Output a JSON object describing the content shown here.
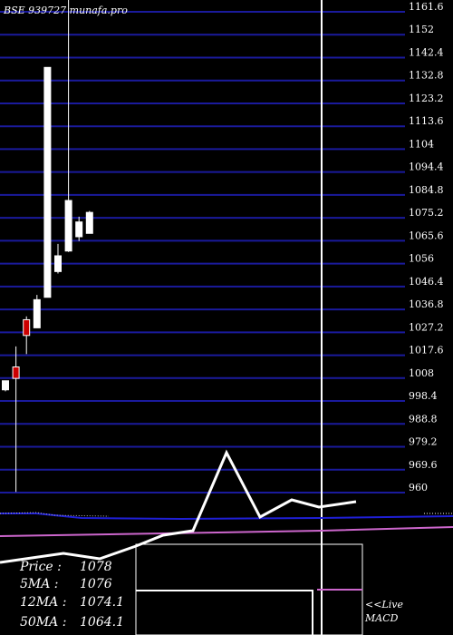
{
  "header": {
    "text": "BSE 939727 munafa.pro"
  },
  "chart_data": {
    "type": "candlestick",
    "y_ticks": [
      1161.6,
      1152,
      1142.4,
      1132.8,
      1123.2,
      1113.6,
      1104,
      1094.4,
      1084.8,
      1075.2,
      1065.6,
      1056,
      1046.4,
      1036.8,
      1027.2,
      1017.6,
      1008,
      998.4,
      988.8,
      979.2,
      969.6,
      960
    ],
    "y_ticks_text": [
      "1161.6",
      "1152",
      "1142.4",
      "1132.8",
      "1123.2",
      "1113.6",
      "1104",
      "1094.4",
      "1084.8",
      "1075.2",
      "1065.6",
      "1056",
      "1046.4",
      "1036.8",
      "1027.2",
      "1017.6",
      "1008",
      "998.4",
      "988.8",
      "979.2",
      "969.6",
      "960"
    ],
    "ylim": [
      960,
      1161.6
    ],
    "candles": [
      {
        "open": 1000.8,
        "close": 1004.6,
        "high": 1004.6,
        "low": 1000.2,
        "color": "white"
      },
      {
        "open": 1005.6,
        "close": 1010.4,
        "high": 1019.0,
        "low": 958.0,
        "color": "red"
      },
      {
        "open": 1023.6,
        "close": 1030.2,
        "high": 1031.6,
        "low": 1015.8,
        "color": "red"
      },
      {
        "open": 1026.8,
        "close": 1038.6,
        "high": 1040.6,
        "low": 1026.8,
        "color": "white"
      },
      {
        "open": 1039.6,
        "close": 1136.0,
        "high": 1136.0,
        "low": 1039.6,
        "color": "white"
      },
      {
        "open": 1050.4,
        "close": 1057.0,
        "high": 1062.0,
        "low": 1049.6,
        "color": "white"
      },
      {
        "open": 1059.0,
        "close": 1080.2,
        "high": 1166.0,
        "low": 1058.6,
        "color": "white"
      },
      {
        "open": 1065.0,
        "close": 1071.2,
        "high": 1073.4,
        "low": 1063.2,
        "color": "white"
      },
      {
        "open": 1066.4,
        "close": 1075.2,
        "high": 1075.8,
        "low": 1066.4,
        "color": "white"
      }
    ],
    "info": {
      "price_label": "Price  :",
      "price_value": "1078",
      "ma5_label": "5MA :",
      "ma5_value": "1076",
      "ma12_label": "12MA :",
      "ma12_value": "1074.1",
      "ma50_label": "50MA :",
      "ma50_value": "1064.1"
    },
    "macd_label_1": "<<Live",
    "macd_label_2": "MACD"
  },
  "colors": {
    "background": "#000000",
    "grid": "#1a1a9c",
    "candle_up": "#ffffff",
    "candle_down": "#cc0000",
    "text": "#ffffff",
    "indicator_blue": "#1f1fd6",
    "indicator_magenta": "#cc66cc"
  }
}
